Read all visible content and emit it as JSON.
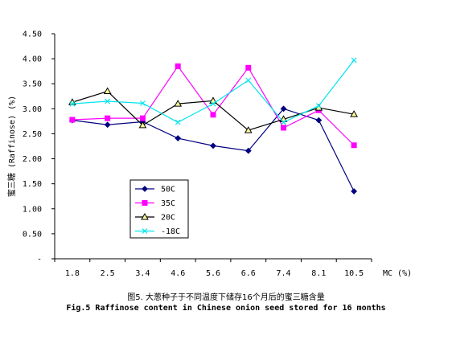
{
  "caption": {
    "cn": "图5. 大葱种子于不同温度下储存16个月后的蜜三糖含量",
    "en": "Fig.5 Raffinose content in Chinese onion seed stored for 16 months"
  },
  "chart_data": {
    "type": "line",
    "title": "",
    "xlabel": "MC (%)",
    "ylabel": "蜜三糖 (Raffinose)  (%)",
    "categories": [
      "1.8",
      "2.5",
      "3.4",
      "4.6",
      "5.6",
      "6.6",
      "7.4",
      "8.1",
      "10.5"
    ],
    "ylim": [
      0,
      4.5
    ],
    "yticks": [
      "-",
      "0.50",
      "1.00",
      "1.50",
      "2.00",
      "2.50",
      "3.00",
      "3.50",
      "4.00",
      "4.50"
    ],
    "yticks_values": [
      0,
      0.5,
      1.0,
      1.5,
      2.0,
      2.5,
      3.0,
      3.5,
      4.0,
      4.5
    ],
    "grid": false,
    "legend_position": "lower-left inside plot",
    "series": [
      {
        "name": "50C",
        "color": "#000080",
        "marker": "diamond",
        "values": [
          2.77,
          2.68,
          2.74,
          2.41,
          2.26,
          2.16,
          3.0,
          2.77,
          1.35
        ]
      },
      {
        "name": "35C",
        "color": "#ff00ff",
        "marker": "square",
        "values": [
          2.78,
          2.81,
          2.81,
          3.85,
          2.88,
          3.82,
          2.62,
          2.97,
          2.27
        ]
      },
      {
        "name": "20C",
        "color": "#000000",
        "marker": "triangle",
        "values": [
          3.13,
          3.35,
          2.67,
          3.1,
          3.16,
          2.57,
          2.79,
          3.02,
          2.89
        ]
      },
      {
        "name": "-18C",
        "color": "#00e5ee",
        "marker": "x",
        "values": [
          3.1,
          3.15,
          3.11,
          2.73,
          3.1,
          3.57,
          2.73,
          3.06,
          3.97
        ]
      }
    ]
  }
}
